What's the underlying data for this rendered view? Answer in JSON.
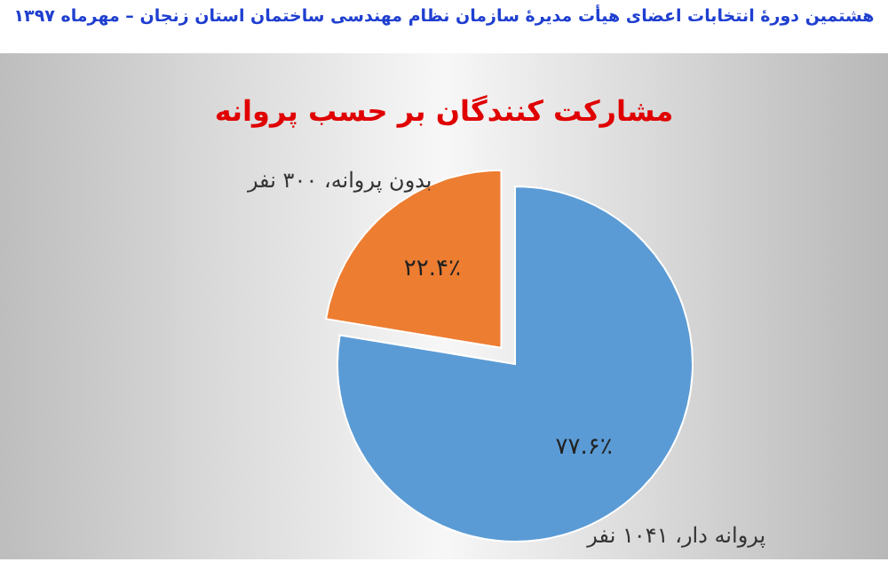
{
  "chart_data": {
    "type": "pie",
    "title": "هشتمین دورهٔ انتخابات اعضای هیأت مدیرهٔ سازمان نظام مهندسی ساختمان استان زنجان – مهرماه ۱۳۹۷",
    "subtitle": "مشارکت کنندگان بر حسب پروانه",
    "categories": [
      "پروانه دار، ۱۰۴۱ نفر",
      "بدون پروانه، ۳۰۰ نفر"
    ],
    "values": [
      77.6,
      22.4
    ],
    "colors": [
      "#5b9bd5",
      "#ed7d31"
    ],
    "value_labels": [
      "۷۷.۶٪",
      "۲۲.۴٪"
    ]
  }
}
